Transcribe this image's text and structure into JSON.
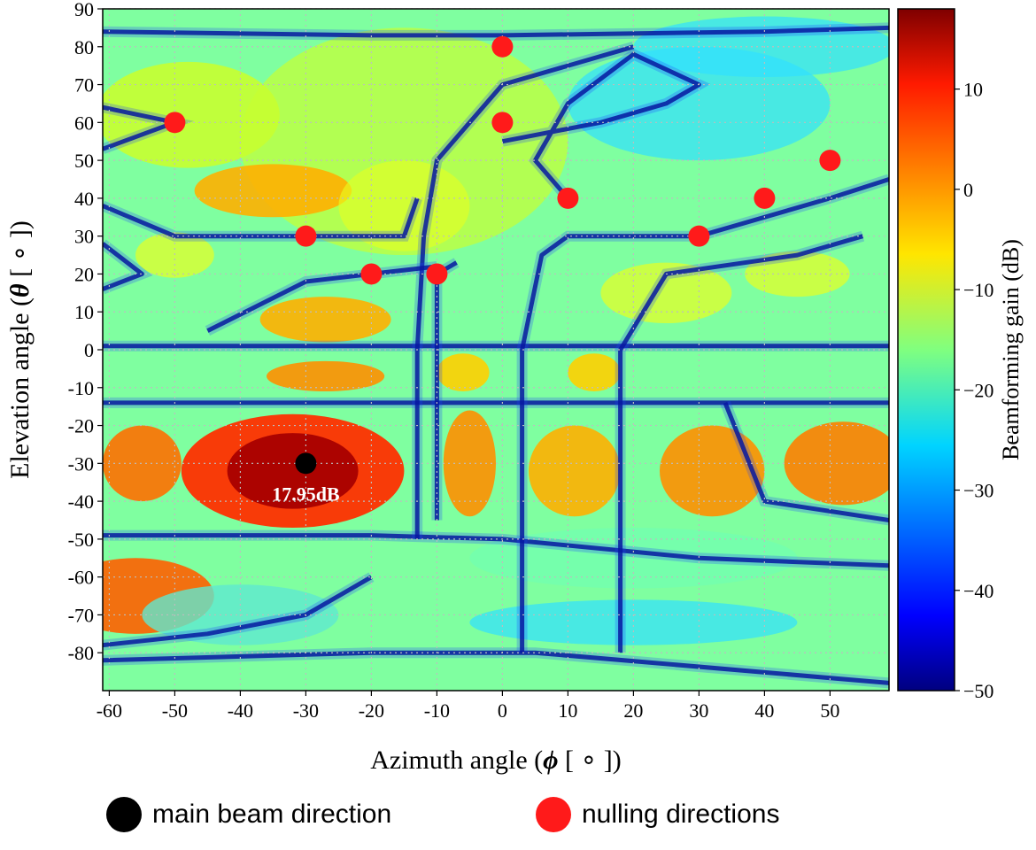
{
  "chart_data": {
    "type": "heatmap",
    "title": "",
    "xlabel": "Azimuth angle",
    "xlabel_symbol": "ϕ",
    "xlabel_unit": "[ ∘ ])",
    "ylabel": "Elevation angle",
    "ylabel_symbol": "θ",
    "ylabel_unit": "[ ∘ ])",
    "xlim": [
      -61,
      59
    ],
    "ylim": [
      -90,
      90
    ],
    "x_ticks": [
      -60,
      -50,
      -40,
      -30,
      -20,
      -10,
      0,
      10,
      20,
      30,
      40,
      50
    ],
    "y_ticks": [
      90,
      80,
      70,
      60,
      50,
      40,
      30,
      20,
      10,
      0,
      -10,
      -20,
      -30,
      -40,
      -50,
      -60,
      -70,
      -80
    ],
    "colorbar": {
      "label": "Beamforming gain (dB)",
      "range": [
        -50,
        18
      ],
      "ticks": [
        10,
        0,
        -10,
        -20,
        -30,
        -40,
        -50
      ],
      "tick_labels": [
        "10",
        "0",
        "−10",
        "−20",
        "−30",
        "−40",
        "−50"
      ],
      "colormap": "jet"
    },
    "grid": true,
    "main_beam": {
      "azimuth": -30,
      "elevation": -30,
      "gain_label": "17.95dB",
      "color": "#000000"
    },
    "nulling_directions": [
      {
        "azimuth": 0,
        "elevation": 80
      },
      {
        "azimuth": -50,
        "elevation": 60
      },
      {
        "azimuth": 0,
        "elevation": 60
      },
      {
        "azimuth": 50,
        "elevation": 50
      },
      {
        "azimuth": 10,
        "elevation": 40
      },
      {
        "azimuth": 40,
        "elevation": 40
      },
      {
        "azimuth": -30,
        "elevation": 30
      },
      {
        "azimuth": 30,
        "elevation": 30
      },
      {
        "azimuth": -20,
        "elevation": 20
      },
      {
        "azimuth": -10,
        "elevation": 20
      }
    ],
    "null_color": "#ff1a1a"
  },
  "legend": {
    "main_beam_label": "main beam direction",
    "nulling_label": "nulling directions"
  }
}
